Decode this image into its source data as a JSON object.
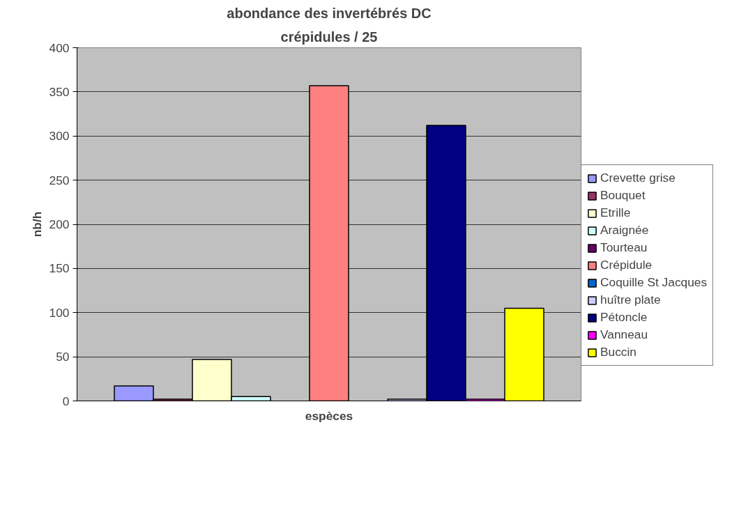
{
  "chart_data": {
    "type": "bar",
    "title": "abondance des invertébrés DC",
    "subtitle": "crépidules / 25",
    "xlabel": "espèces",
    "ylabel": "nb/h",
    "categories": [
      null
    ],
    "series": [
      {
        "name": "Crevette grise",
        "color": "#9999ff",
        "values": [
          17
        ]
      },
      {
        "name": "Bouquet",
        "color": "#993366",
        "values": [
          2
        ]
      },
      {
        "name": "Etrille",
        "color": "#ffffcc",
        "values": [
          47
        ]
      },
      {
        "name": "Araignée",
        "color": "#ccffff",
        "values": [
          5
        ]
      },
      {
        "name": "Tourteau",
        "color": "#660066",
        "values": [
          null
        ]
      },
      {
        "name": "Crépidule",
        "color": "#ff8080",
        "values": [
          357
        ]
      },
      {
        "name": "Coquille St Jacques",
        "color": "#0066cc",
        "values": [
          null
        ]
      },
      {
        "name": "huître plate",
        "color": "#ccccff",
        "values": [
          2
        ]
      },
      {
        "name": "Pétoncle",
        "color": "#000080",
        "values": [
          312
        ]
      },
      {
        "name": "Vanneau",
        "color": "#ff00ff",
        "values": [
          2
        ]
      },
      {
        "name": "Buccin",
        "color": "#ffff00",
        "values": [
          105
        ]
      }
    ],
    "ylim": [
      0,
      400
    ],
    "yticks": [
      0,
      50,
      100,
      150,
      200,
      250,
      300,
      350,
      400
    ],
    "grid": "y",
    "legend": "right"
  }
}
